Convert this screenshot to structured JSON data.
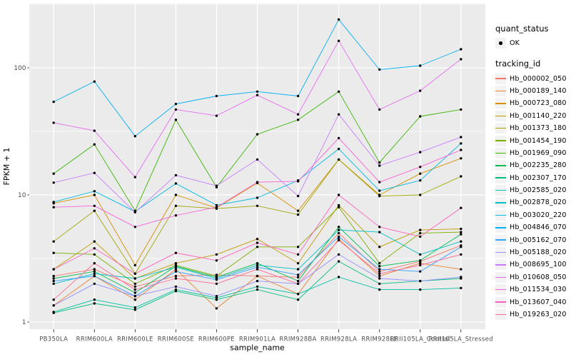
{
  "figure": {
    "panel_background": "#EBEBEB",
    "gridline_color": "#FFFFFF",
    "tick_color": "#333333",
    "tick_label_color": "#4D4D4D",
    "axis_title_color": "#000000",
    "point_color": "#000000",
    "legend_key_background": "#F2F2F2"
  },
  "legend": {
    "quant_status_title": "quant_status",
    "quant_status_items": [
      {
        "label": "OK",
        "symbol": "point"
      }
    ],
    "tracking_id_title": "tracking_id"
  },
  "chart_data": {
    "type": "line",
    "title": "",
    "xlabel": "sample_name",
    "ylabel": "FPKM + 1",
    "y_scale": "log10",
    "y_ticks": [
      1,
      10,
      100
    ],
    "y_minor_ticks": [
      3.1623,
      31.623,
      316.23
    ],
    "ylim": [
      0.9,
      320
    ],
    "grid": true,
    "legend_position": "right",
    "marker": "point",
    "categories": [
      "PB350LA",
      "RRIM600LA",
      "RRIM600LE",
      "RRIM600SE",
      "RRIM600PE",
      "RRIM901LA",
      "RRIM928BA",
      "RRIM928LA",
      "RRIM928LE",
      "RRII105LA_Control",
      "RRII105LA_Stressed"
    ],
    "series": [
      {
        "name": "Hb_000002_050",
        "color": "#F8766D",
        "values": [
          2.3,
          2.6,
          1.9,
          2.3,
          2.35,
          2.3,
          2.25,
          5.0,
          2.5,
          3.0,
          4.0
        ]
      },
      {
        "name": "Hb_000189_140",
        "color": "#EA8331",
        "values": [
          1.35,
          2.3,
          1.5,
          2.6,
          1.28,
          2.3,
          1.66,
          4.5,
          2.3,
          2.9,
          2.6
        ]
      },
      {
        "name": "Hb_000723_080",
        "color": "#D89000",
        "values": [
          8.6,
          10.0,
          2.8,
          10.0,
          7.9,
          12.4,
          7.5,
          19,
          10.0,
          14.7,
          19.4
        ]
      },
      {
        "name": "Hb_001140_220",
        "color": "#C09B00",
        "values": [
          2.6,
          4.3,
          2.2,
          2.9,
          3.4,
          4.5,
          2.9,
          8.3,
          3.9,
          5.3,
          5.4
        ]
      },
      {
        "name": "Hb_001373_180",
        "color": "#A3A500",
        "values": [
          4.3,
          7.5,
          2.4,
          8.2,
          7.8,
          8.2,
          7.0,
          19,
          9.8,
          10.0,
          14.0
        ]
      },
      {
        "name": "Hb_001454_190",
        "color": "#7CAE00",
        "values": [
          3.5,
          3.4,
          2.0,
          2.8,
          2.3,
          3.9,
          3.9,
          8.0,
          2.9,
          5.0,
          5.1
        ]
      },
      {
        "name": "Hb_001969_090",
        "color": "#39B600",
        "values": [
          14.7,
          25,
          7.5,
          39,
          11.5,
          30,
          39,
          65,
          18,
          41.5,
          47
        ]
      },
      {
        "name": "Hb_002235_280",
        "color": "#00BB4E",
        "values": [
          2.2,
          2.5,
          1.7,
          2.75,
          2.25,
          2.9,
          2.1,
          5.6,
          2.75,
          3.05,
          4.9
        ]
      },
      {
        "name": "Hb_002307_170",
        "color": "#00BF7D",
        "values": [
          1.18,
          1.4,
          1.25,
          1.75,
          1.5,
          1.8,
          1.5,
          3.0,
          2.0,
          2.1,
          2.2
        ]
      },
      {
        "name": "Hb_002585_020",
        "color": "#00C1A3",
        "values": [
          1.2,
          1.5,
          1.3,
          1.8,
          1.55,
          1.9,
          1.66,
          2.26,
          1.8,
          1.8,
          1.85
        ]
      },
      {
        "name": "Hb_002878_020",
        "color": "#00BFC4",
        "values": [
          2.0,
          2.4,
          2.2,
          2.7,
          2.2,
          2.8,
          2.6,
          5.3,
          5.1,
          3.4,
          4.3
        ]
      },
      {
        "name": "Hb_003020_220",
        "color": "#00BAE0",
        "values": [
          8.8,
          10.7,
          7.4,
          12.3,
          8.3,
          9.5,
          13.0,
          23,
          10.8,
          13.0,
          25.4
        ]
      },
      {
        "name": "Hb_004846_070",
        "color": "#00B0F6",
        "values": [
          54,
          78,
          29,
          52,
          60,
          65,
          60,
          240,
          97,
          104,
          140
        ]
      },
      {
        "name": "Hb_005162_070",
        "color": "#35A2FF",
        "values": [
          2.1,
          2.3,
          1.6,
          2.5,
          2.15,
          2.7,
          2.35,
          4.7,
          2.6,
          2.5,
          3.9
        ]
      },
      {
        "name": "Hb_005188_020",
        "color": "#9590FF",
        "values": [
          1.35,
          2.0,
          1.6,
          1.9,
          1.6,
          2.1,
          2.0,
          3.4,
          2.2,
          2.1,
          2.26
        ]
      },
      {
        "name": "Hb_008695_100",
        "color": "#C77CFF",
        "values": [
          12.5,
          14.9,
          7.3,
          14.3,
          11.8,
          19.0,
          9.8,
          43,
          17,
          21.7,
          28.5
        ]
      },
      {
        "name": "Hb_010608_050",
        "color": "#E76BF3",
        "values": [
          37,
          32,
          13.8,
          47,
          42,
          61,
          43,
          163,
          47,
          66,
          117
        ]
      },
      {
        "name": "Hb_011534_030",
        "color": "#FA62DB",
        "values": [
          8.0,
          8.2,
          5.6,
          6.9,
          8.0,
          12.6,
          12.8,
          28,
          12.6,
          16.6,
          22.6
        ]
      },
      {
        "name": "Hb_013607_040",
        "color": "#FF62BC",
        "values": [
          2.6,
          3.8,
          2.4,
          3.5,
          3.05,
          4.2,
          3.4,
          10.0,
          5.6,
          4.7,
          7.9
        ]
      },
      {
        "name": "Hb_019263_020",
        "color": "#FF6A98",
        "values": [
          1.5,
          2.9,
          1.8,
          2.2,
          2.0,
          2.6,
          2.0,
          4.4,
          2.4,
          2.8,
          3.4
        ]
      }
    ]
  }
}
